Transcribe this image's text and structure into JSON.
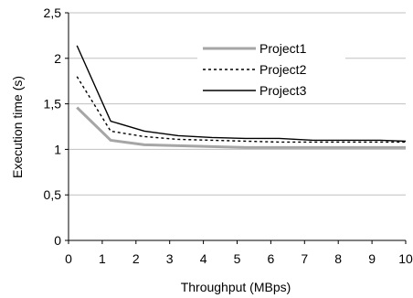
{
  "chart_data": {
    "type": "line",
    "title": "",
    "xlabel": "Throughput (MBps)",
    "ylabel": "Execution time (s)",
    "xlim": [
      0,
      10
    ],
    "ylim": [
      0,
      2.5
    ],
    "x_ticks": [
      "0",
      "1",
      "2",
      "3",
      "4",
      "5",
      "6",
      "7",
      "8",
      "9",
      "10"
    ],
    "y_ticks": [
      "0",
      "0,5",
      "1",
      "1,5",
      "2",
      "2,5"
    ],
    "grid": "horizontal",
    "legend_position": "top-right",
    "x": [
      0.25,
      1.25,
      2.25,
      3.25,
      4.25,
      5.25,
      6.25,
      7.25,
      8.25,
      9.25,
      10
    ],
    "series": [
      {
        "name": "Project1",
        "color": "#a6a6a6",
        "style": "solid-thick",
        "values": [
          1.46,
          1.1,
          1.05,
          1.04,
          1.03,
          1.02,
          1.02,
          1.02,
          1.02,
          1.02,
          1.02
        ]
      },
      {
        "name": "Project2",
        "color": "#000000",
        "style": "dashed",
        "values": [
          1.8,
          1.2,
          1.14,
          1.11,
          1.1,
          1.09,
          1.08,
          1.08,
          1.08,
          1.08,
          1.08
        ]
      },
      {
        "name": "Project3",
        "color": "#000000",
        "style": "solid-thin",
        "values": [
          2.14,
          1.31,
          1.2,
          1.15,
          1.13,
          1.12,
          1.12,
          1.1,
          1.1,
          1.1,
          1.09
        ]
      }
    ]
  }
}
